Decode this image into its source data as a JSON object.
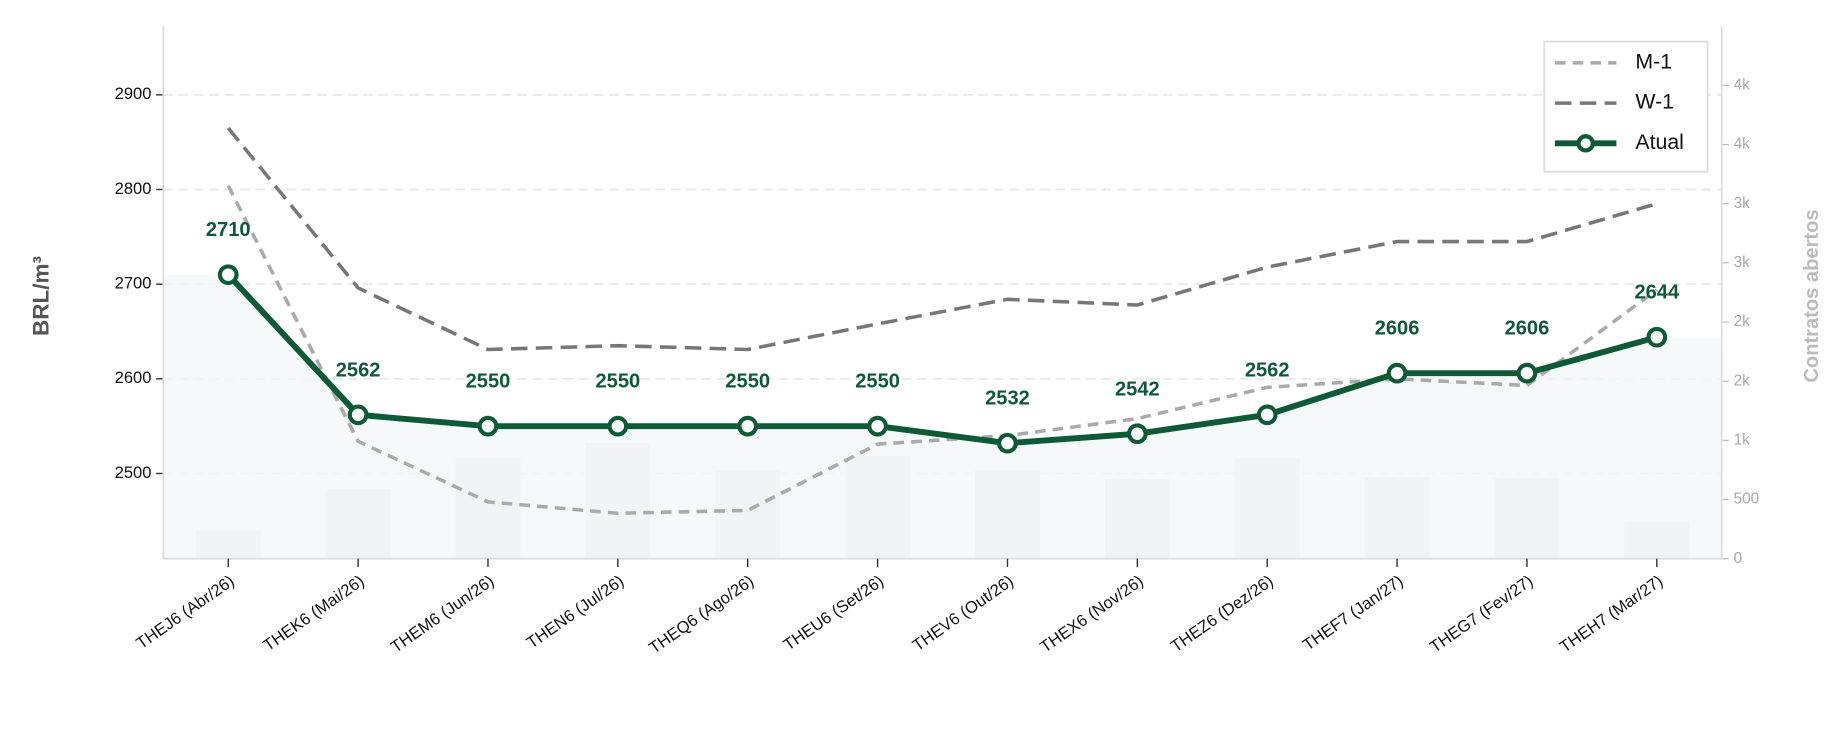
{
  "chart_data": {
    "type": "line",
    "categories": [
      "THEJ6 (Abr/26)",
      "THEK6 (Mai/26)",
      "THEM6 (Jun/26)",
      "THEN6 (Jul/26)",
      "THEQ6 (Ago/26)",
      "THEU6 (Set/26)",
      "THEV6 (Out/26)",
      "THEX6 (Nov/26)",
      "THEZ6 (Dez/26)",
      "THEF7 (Jan/27)",
      "THEG7 (Fev/27)",
      "THEH7 (Mar/27)"
    ],
    "ylabel": "BRL/m³",
    "y2label": "Contratos abertos",
    "ylim": [
      2410,
      2972.5
    ],
    "yticks": [
      2500,
      2600,
      2700,
      2800,
      2900
    ],
    "y2lim": [
      0,
      4500
    ],
    "y2ticks": [
      0,
      500,
      {
        "value": 1000,
        "label": "1k"
      },
      {
        "value": 1500,
        "label": "2k"
      },
      {
        "value": 2000,
        "label": "2k"
      },
      {
        "value": 2500,
        "label": "3k"
      },
      {
        "value": 3000,
        "label": "3k"
      },
      {
        "value": 3500,
        "label": "4k"
      },
      {
        "value": 4000,
        "label": "4k"
      }
    ],
    "grid": true,
    "legend": "upper right",
    "bars": {
      "axis": "y2",
      "color": "#e3e5e6",
      "values": [
        240,
        590,
        850,
        980,
        750,
        870,
        750,
        670,
        850,
        690,
        680,
        310
      ]
    },
    "area_color": "#f4f8f9",
    "series": [
      {
        "name": "M-1",
        "color": "#aaaaaa",
        "dash": "short",
        "values": [
          2804,
          2534,
          2470,
          2458,
          2461,
          2531,
          2540,
          2558,
          2591,
          2600,
          2593,
          2694
        ]
      },
      {
        "name": "W-1",
        "color": "#777777",
        "dash": "long",
        "values": [
          2865,
          2696,
          2631,
          2635,
          2631,
          2658,
          2684,
          2678,
          2718,
          2745,
          2745,
          2785
        ]
      },
      {
        "name": "Atual",
        "color": "#0f5a36",
        "markers": true,
        "labels": true,
        "values": [
          2710,
          2562,
          2550,
          2550,
          2550,
          2550,
          2532,
          2542,
          2562,
          2606,
          2606,
          2644
        ]
      }
    ]
  }
}
